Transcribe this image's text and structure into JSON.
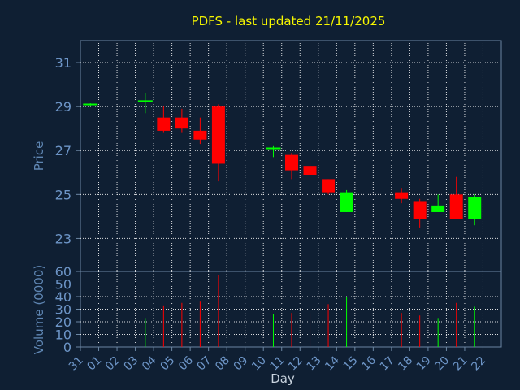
{
  "chart_data": {
    "type": "candlestick",
    "title": "PDFS - last updated 21/11/2025",
    "xlabel": "Day",
    "price_ylabel": "Price",
    "volume_ylabel": "Volume (0000)",
    "categories": [
      "31",
      "01",
      "02",
      "03",
      "04",
      "05",
      "06",
      "07",
      "08",
      "09",
      "10",
      "11",
      "12",
      "13",
      "14",
      "15",
      "16",
      "17",
      "18",
      "19",
      "20",
      "21",
      "22"
    ],
    "price_ticks": [
      "31",
      "29",
      "27",
      "25",
      "23"
    ],
    "volume_ticks": [
      "60",
      "50",
      "40",
      "30",
      "20",
      "10",
      "0"
    ],
    "price_ylim": [
      21.5,
      32.0
    ],
    "volume_ylim": [
      0,
      60
    ],
    "grid": true,
    "colors": {
      "background": "#0f1f33",
      "up": "#00ff00",
      "down": "#ff0000",
      "grid": "#ffffff",
      "title": "#f7f700",
      "axis_text": "#6d95c7"
    },
    "candles": [
      {
        "day": "31",
        "open": 29.1,
        "high": 29.15,
        "low": 29.0,
        "close": 29.1,
        "volume": 0
      },
      {
        "day": "03",
        "open": 29.25,
        "high": 29.6,
        "low": 28.7,
        "close": 29.25,
        "volume": 23
      },
      {
        "day": "04",
        "open": 28.5,
        "high": 29.0,
        "low": 27.8,
        "close": 27.9,
        "volume": 33
      },
      {
        "day": "05",
        "open": 28.5,
        "high": 28.9,
        "low": 27.8,
        "close": 28.0,
        "volume": 35
      },
      {
        "day": "06",
        "open": 27.9,
        "high": 28.5,
        "low": 27.3,
        "close": 27.5,
        "volume": 36
      },
      {
        "day": "07",
        "open": 29.0,
        "high": 29.1,
        "low": 25.6,
        "close": 26.4,
        "volume": 57
      },
      {
        "day": "10",
        "open": 27.1,
        "high": 27.2,
        "low": 26.7,
        "close": 27.1,
        "volume": 26
      },
      {
        "day": "11",
        "open": 26.8,
        "high": 26.9,
        "low": 25.7,
        "close": 26.1,
        "volume": 27
      },
      {
        "day": "12",
        "open": 26.3,
        "high": 26.6,
        "low": 25.9,
        "close": 25.9,
        "volume": 27
      },
      {
        "day": "13",
        "open": 25.7,
        "high": 25.7,
        "low": 25.0,
        "close": 25.1,
        "volume": 34
      },
      {
        "day": "14",
        "open": 24.2,
        "high": 25.2,
        "low": 24.2,
        "close": 25.1,
        "volume": 40
      },
      {
        "day": "17",
        "open": 25.1,
        "high": 25.3,
        "low": 24.6,
        "close": 24.8,
        "volume": 27
      },
      {
        "day": "18",
        "open": 24.7,
        "high": 24.8,
        "low": 23.5,
        "close": 23.9,
        "volume": 25
      },
      {
        "day": "19",
        "open": 24.2,
        "high": 25.0,
        "low": 24.2,
        "close": 24.5,
        "volume": 23
      },
      {
        "day": "20",
        "open": 25.0,
        "high": 25.8,
        "low": 23.9,
        "close": 23.9,
        "volume": 35
      },
      {
        "day": "21",
        "open": 23.9,
        "high": 25.0,
        "low": 23.6,
        "close": 24.9,
        "volume": 32
      }
    ]
  }
}
